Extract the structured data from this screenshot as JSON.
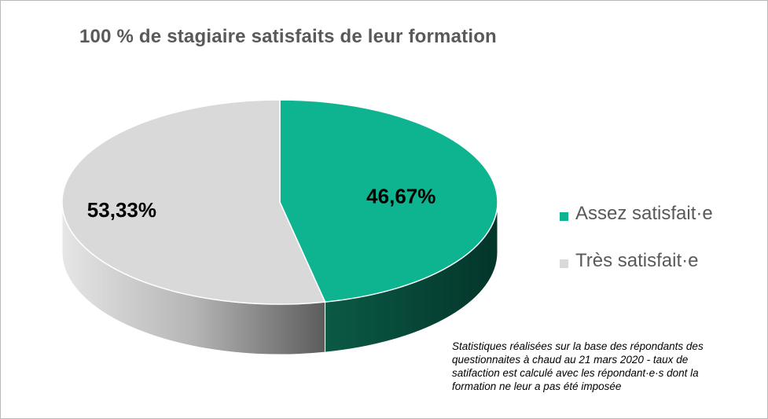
{
  "chart_data": {
    "type": "pie",
    "title": "100 % de stagiaire satisfaits de leur formation",
    "slices": [
      {
        "label": "Assez satisfait·e",
        "value": 46.67,
        "data_label": "46,67%",
        "color": "#0db48f",
        "side_color": "#0a4a3a"
      },
      {
        "label": "Très satisfait·e",
        "value": 53.33,
        "data_label": "53,33%",
        "color": "#d9d9d9",
        "side_color": "#8c8c8c"
      }
    ],
    "legend_position": "right",
    "style": "3d"
  },
  "footnote": "Statistiques réalisées sur la base des répondants des questionnaites à chaud au 21 mars 2020  -   taux de satifaction est calculé avec les répondant·e·s dont la formation ne leur a pas été imposée"
}
